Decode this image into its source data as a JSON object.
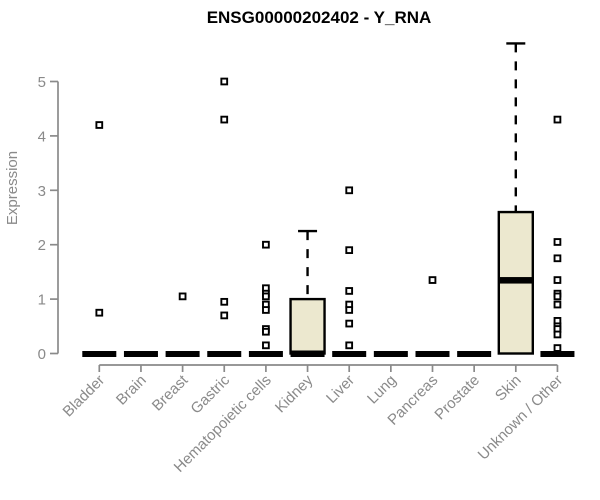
{
  "chart_data": {
    "type": "boxplot",
    "title": "ENSG00000202402 - Y_RNA",
    "ylabel": "Expression",
    "xlabel": "",
    "ylim": [
      0,
      5
    ],
    "yticks": [
      0,
      1,
      2,
      3,
      4,
      5
    ],
    "grid": false,
    "legend": null,
    "categories": [
      "Bladder",
      "Brain",
      "Breast",
      "Gastric",
      "Hematopoietic cells",
      "Kidney",
      "Liver",
      "Lung",
      "Pancreas",
      "Prostate",
      "Skin",
      "Unknown / Other"
    ],
    "boxes": [
      {
        "category": "Bladder",
        "q1": 0,
        "median": 0,
        "q3": 0,
        "whisker_low": 0,
        "whisker_high": 0,
        "outliers": [
          4.2,
          0.75
        ]
      },
      {
        "category": "Brain",
        "q1": 0,
        "median": 0,
        "q3": 0,
        "whisker_low": 0,
        "whisker_high": 0,
        "outliers": []
      },
      {
        "category": "Breast",
        "q1": 0,
        "median": 0,
        "q3": 0,
        "whisker_low": 0,
        "whisker_high": 0,
        "outliers": [
          1.05
        ]
      },
      {
        "category": "Gastric",
        "q1": 0,
        "median": 0,
        "q3": 0,
        "whisker_low": 0,
        "whisker_high": 0,
        "outliers": [
          5.0,
          4.3,
          0.95,
          0.7
        ]
      },
      {
        "category": "Hematopoietic cells",
        "q1": 0,
        "median": 0,
        "q3": 0,
        "whisker_low": 0,
        "whisker_high": 0,
        "outliers": [
          2.0,
          1.2,
          1.1,
          1.05,
          0.9,
          0.8,
          0.45,
          0.4,
          0.15
        ]
      },
      {
        "category": "Kidney",
        "q1": 0,
        "median": 0,
        "q3": 1.0,
        "whisker_low": 0,
        "whisker_high": 2.25,
        "outliers": []
      },
      {
        "category": "Liver",
        "q1": 0,
        "median": 0,
        "q3": 0,
        "whisker_low": 0,
        "whisker_high": 0,
        "outliers": [
          3.0,
          1.9,
          1.15,
          0.9,
          0.8,
          0.55,
          0.15
        ]
      },
      {
        "category": "Lung",
        "q1": 0,
        "median": 0,
        "q3": 0,
        "whisker_low": 0,
        "whisker_high": 0,
        "outliers": []
      },
      {
        "category": "Pancreas",
        "q1": 0,
        "median": 0,
        "q3": 0,
        "whisker_low": 0,
        "whisker_high": 0,
        "outliers": [
          1.35
        ]
      },
      {
        "category": "Prostate",
        "q1": 0,
        "median": 0,
        "q3": 0,
        "whisker_low": 0,
        "whisker_high": 0,
        "outliers": []
      },
      {
        "category": "Skin",
        "q1": 0,
        "median": 1.35,
        "q3": 2.6,
        "whisker_low": 0,
        "whisker_high": 5.7,
        "outliers": []
      },
      {
        "category": "Unknown / Other",
        "q1": 0,
        "median": 0,
        "q3": 0,
        "whisker_low": 0,
        "whisker_high": 0,
        "outliers": [
          4.3,
          2.05,
          1.75,
          1.35,
          1.1,
          1.05,
          0.9,
          0.6,
          0.5,
          0.45,
          0.35,
          0.1
        ]
      }
    ],
    "style": {
      "background": "#ffffff",
      "box_fill": "#ece8cf",
      "box_stroke": "#000000",
      "median_color": "#000000",
      "whisker_color": "#000000",
      "outlier_stroke": "#000000",
      "outlier_fill": "#ffffff",
      "axis_color": "#8a8a8a",
      "tick_label_color": "#8a8a8a",
      "title_color": "#000000"
    }
  }
}
